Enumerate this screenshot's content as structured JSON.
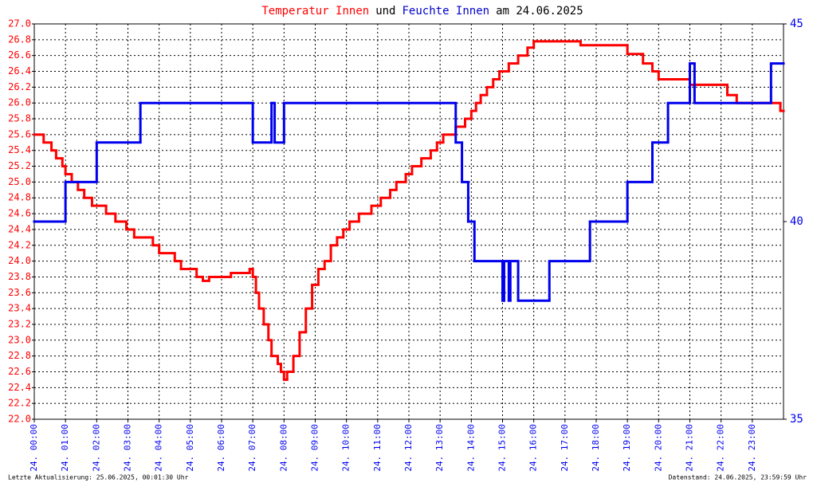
{
  "chart_data": {
    "type": "step-line",
    "title_parts": [
      {
        "text": "Temperatur Innen",
        "color": "#ff0000"
      },
      {
        "text": "und",
        "color": "#000000"
      },
      {
        "text": "Feuchte Innen",
        "color": "#0000cc"
      },
      {
        "text": "am 24.06.2025",
        "color": "#000000"
      }
    ],
    "footer_left": "Letzte Aktualisierung: 25.06.2025, 00:01:30 Uhr",
    "footer_right": "Datenstand: 24.06.2025, 23:59:59 Uhr",
    "grid": true,
    "xlim": [
      0,
      24
    ],
    "xticks": [
      {
        "value": 0,
        "label": "24. 00:00"
      },
      {
        "value": 1,
        "label": "24. 01:00"
      },
      {
        "value": 2,
        "label": "24. 02:00"
      },
      {
        "value": 3,
        "label": "24. 03:00"
      },
      {
        "value": 4,
        "label": "24. 04:00"
      },
      {
        "value": 5,
        "label": "24. 05:00"
      },
      {
        "value": 6,
        "label": "24. 06:00"
      },
      {
        "value": 7,
        "label": "24. 07:00"
      },
      {
        "value": 8,
        "label": "24. 08:00"
      },
      {
        "value": 9,
        "label": "24. 09:00"
      },
      {
        "value": 10,
        "label": "24. 10:00"
      },
      {
        "value": 11,
        "label": "24. 11:00"
      },
      {
        "value": 12,
        "label": "24. 12:00"
      },
      {
        "value": 13,
        "label": "24. 13:00"
      },
      {
        "value": 14,
        "label": "24. 14:00"
      },
      {
        "value": 15,
        "label": "24. 15:00"
      },
      {
        "value": 16,
        "label": "24. 16:00"
      },
      {
        "value": 17,
        "label": "24. 17:00"
      },
      {
        "value": 18,
        "label": "24. 18:00"
      },
      {
        "value": 19,
        "label": "24. 19:00"
      },
      {
        "value": 20,
        "label": "24. 20:00"
      },
      {
        "value": 21,
        "label": "24. 21:00"
      },
      {
        "value": 22,
        "label": "24. 22:00"
      },
      {
        "value": 23,
        "label": "24. 23:00"
      }
    ],
    "ylim": [
      22,
      27
    ],
    "yticks": [
      {
        "value": 22,
        "label": "22.0"
      },
      22.2,
      22.4,
      22.6,
      22.8,
      {
        "value": 23,
        "label": "23.0"
      },
      23.2,
      23.4,
      23.6,
      23.8,
      {
        "value": 24,
        "label": "24.0"
      },
      24.2,
      24.4,
      24.6,
      24.8,
      {
        "value": 25,
        "label": "25.0"
      },
      25.2,
      25.4,
      25.6,
      25.8,
      {
        "value": 26,
        "label": "26.0"
      },
      26.2,
      26.4,
      26.6,
      26.8,
      {
        "value": 27,
        "label": "27.0"
      }
    ],
    "y2lim": [
      35,
      45
    ],
    "y2ticks": [
      35,
      40,
      45
    ],
    "series": [
      {
        "name": "Temperatur Innen",
        "color": "#ff0000",
        "x": [
          0,
          0.3,
          0.55,
          0.7,
          0.9,
          1.0,
          1.2,
          1.4,
          1.6,
          1.85,
          2.3,
          2.6,
          2.95,
          3.2,
          3.8,
          4.0,
          4.5,
          4.7,
          5.2,
          5.4,
          5.6,
          6.3,
          6.9,
          7.0,
          7.1,
          7.2,
          7.35,
          7.5,
          7.6,
          7.8,
          7.9,
          8.0,
          8.1,
          8.3,
          8.5,
          8.7,
          8.9,
          9.1,
          9.3,
          9.5,
          9.7,
          9.9,
          10.1,
          10.4,
          10.8,
          11.1,
          11.4,
          11.6,
          11.9,
          12.1,
          12.4,
          12.7,
          12.9,
          13.1,
          13.5,
          13.8,
          14.0,
          14.15,
          14.3,
          14.5,
          14.7,
          14.9,
          15.2,
          15.5,
          15.8,
          16.0,
          17.5,
          19.0,
          19.5,
          19.8,
          20.0,
          21.0,
          22.2,
          22.5,
          23.9
        ],
        "values": [
          25.6,
          25.5,
          25.4,
          25.3,
          25.2,
          25.1,
          25.0,
          24.9,
          24.8,
          24.7,
          24.6,
          24.5,
          24.4,
          24.3,
          24.2,
          24.1,
          24.0,
          23.9,
          23.8,
          23.75,
          23.8,
          23.85,
          23.9,
          23.8,
          23.6,
          23.4,
          23.2,
          23.0,
          22.8,
          22.7,
          22.6,
          22.5,
          22.6,
          22.8,
          23.1,
          23.4,
          23.7,
          23.9,
          24.0,
          24.2,
          24.3,
          24.4,
          24.5,
          24.6,
          24.7,
          24.8,
          24.9,
          25.0,
          25.1,
          25.2,
          25.3,
          25.4,
          25.5,
          25.6,
          25.7,
          25.8,
          25.9,
          26.0,
          26.1,
          26.2,
          26.3,
          26.4,
          26.5,
          26.6,
          26.7,
          26.78,
          26.73,
          26.62,
          26.5,
          26.4,
          26.3,
          26.23,
          26.1,
          26.0,
          25.9
        ]
      },
      {
        "name": "Feuchte Innen",
        "color": "#0000ee",
        "axis": "y2",
        "x": [
          0,
          1.0,
          2.0,
          3.4,
          7.0,
          7.6,
          7.7,
          8.0,
          13.5,
          13.7,
          13.9,
          14.1,
          15.0,
          15.05,
          15.2,
          15.25,
          15.5,
          16.5,
          17.8,
          19.0,
          19.8,
          20.3,
          21.0,
          21.15,
          23.6
        ],
        "values": [
          40,
          41,
          42,
          43,
          42,
          43,
          42,
          43,
          42,
          41,
          40,
          39,
          38,
          39,
          38,
          39,
          38,
          39,
          40,
          41,
          42,
          43,
          44,
          43,
          44
        ]
      }
    ]
  }
}
